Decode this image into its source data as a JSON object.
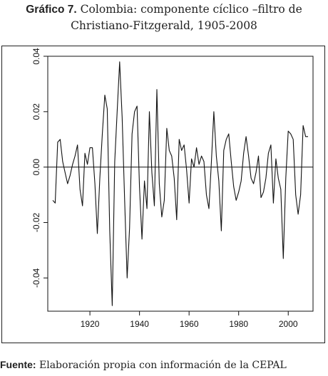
{
  "caption": {
    "label": "Gráfico 7.",
    "text_line1": "Colombia: componente cíclico –filtro de",
    "text_line2": "Christiano-Fitzgerald, 1905-2008"
  },
  "source": {
    "label": "Fuente:",
    "text": "Elaboración propia con información de la CEPAL"
  },
  "chart_data": {
    "type": "line",
    "title": "",
    "xlabel": "",
    "ylabel": "",
    "xlim": [
      1903,
      2010
    ],
    "ylim": [
      -0.052,
      0.04
    ],
    "x_ticks": [
      1920,
      1940,
      1960,
      1980,
      2000
    ],
    "x_tick_labels": [
      "1920",
      "1940",
      "1960",
      "1980",
      "2000"
    ],
    "y_ticks": [
      -0.04,
      -0.02,
      0.0,
      0.02,
      0.04
    ],
    "y_tick_labels": [
      "-0.04",
      "-0.02",
      "0.00",
      "0.02",
      "0.04"
    ],
    "reference_line": 0,
    "grid": false,
    "series": [
      {
        "x": [
          1905,
          1906,
          1907,
          1908,
          1909,
          1910,
          1911,
          1912,
          1913,
          1914,
          1915,
          1916,
          1917,
          1918,
          1919,
          1920,
          1921,
          1922,
          1923,
          1924,
          1925,
          1926,
          1927,
          1928,
          1929,
          1930,
          1931,
          1932,
          1933,
          1934,
          1935,
          1936,
          1937,
          1938,
          1939,
          1940,
          1941,
          1942,
          1943,
          1944,
          1945,
          1946,
          1947,
          1948,
          1949,
          1950,
          1951,
          1952,
          1953,
          1954,
          1955,
          1956,
          1957,
          1958,
          1959,
          1960,
          1961,
          1962,
          1963,
          1964,
          1965,
          1966,
          1967,
          1968,
          1969,
          1970,
          1971,
          1972,
          1973,
          1974,
          1975,
          1976,
          1977,
          1978,
          1979,
          1980,
          1981,
          1982,
          1983,
          1984,
          1985,
          1986,
          1987,
          1988,
          1989,
          1990,
          1991,
          1992,
          1993,
          1994,
          1995,
          1996,
          1997,
          1998,
          1999,
          2000,
          2001,
          2002,
          2003,
          2004,
          2005,
          2006,
          2007,
          2008
        ],
        "values": [
          -0.012,
          -0.013,
          0.009,
          0.01,
          0.002,
          -0.002,
          -0.006,
          -0.003,
          0.001,
          0.004,
          0.008,
          -0.008,
          -0.014,
          0.005,
          0.001,
          0.007,
          0.007,
          -0.006,
          -0.024,
          -0.004,
          0.012,
          0.026,
          0.021,
          -0.023,
          -0.05,
          0.002,
          0.02,
          0.038,
          0.018,
          -0.012,
          -0.04,
          -0.022,
          0.012,
          0.02,
          0.022,
          -0.007,
          -0.026,
          -0.005,
          -0.015,
          0.02,
          -0.002,
          -0.014,
          0.028,
          -0.006,
          -0.018,
          -0.012,
          0.014,
          0.006,
          0.004,
          -0.004,
          -0.019,
          0.01,
          0.006,
          0.008,
          -0.001,
          -0.013,
          0.003,
          0.0,
          0.007,
          0.001,
          0.004,
          0.002,
          -0.01,
          -0.015,
          0.002,
          0.02,
          0.004,
          -0.005,
          -0.023,
          0.006,
          0.01,
          0.012,
          0.002,
          -0.007,
          -0.012,
          -0.009,
          -0.005,
          0.005,
          0.011,
          0.004,
          -0.004,
          -0.006,
          -0.002,
          0.004,
          -0.011,
          -0.009,
          -0.004,
          0.005,
          0.008,
          -0.013,
          0.003,
          -0.004,
          -0.008,
          -0.033,
          -0.004,
          0.013,
          0.012,
          0.01,
          -0.01,
          -0.017,
          -0.01,
          0.015,
          0.011,
          0.011
        ]
      }
    ]
  }
}
